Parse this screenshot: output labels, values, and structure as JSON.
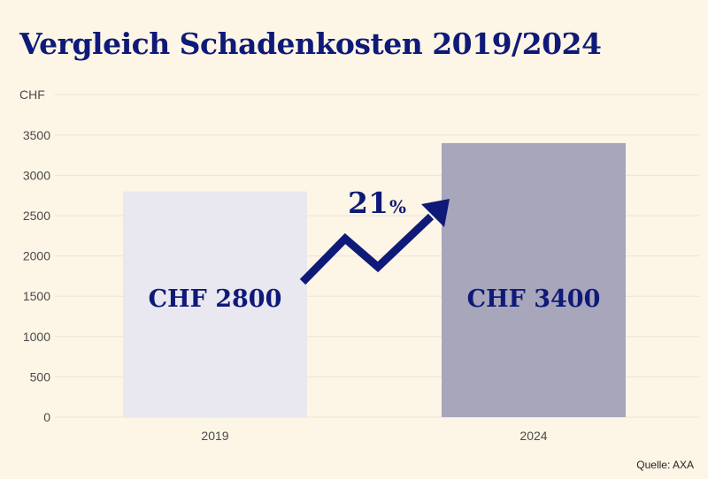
{
  "chart_data": {
    "type": "bar",
    "title": "Vergleich Schadenkosten 2019/2024",
    "ylabel": "CHF",
    "categories": [
      "2019",
      "2024"
    ],
    "values": [
      2800,
      3400
    ],
    "bar_labels": [
      "CHF 2800",
      "CHF 3400"
    ],
    "bar_colors": [
      "#e9e7ef",
      "#a8a6bb"
    ],
    "ylim": [
      0,
      4000
    ],
    "yticks": [
      0,
      500,
      1000,
      1500,
      2000,
      2500,
      3000,
      3500
    ],
    "grid": true,
    "annotation": {
      "value": "21",
      "unit": "%"
    },
    "source": "Quelle: AXA"
  },
  "colors": {
    "background": "#fdf5e6",
    "accent": "#0f1a78",
    "grid": "#ece4d3",
    "tick_text": "#4a4a4a"
  }
}
